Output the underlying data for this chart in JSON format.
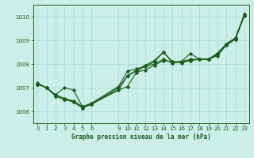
{
  "bg_color": "#cceee8",
  "grid_color": "#aad4ce",
  "line_color": "#1a5c1a",
  "title": "Graphe pression niveau de la mer (hPa)",
  "xlim": [
    -0.5,
    23.5
  ],
  "ylim": [
    1005.5,
    1010.5
  ],
  "yticks": [
    1006,
    1007,
    1008,
    1009,
    1010
  ],
  "xticks": [
    0,
    1,
    2,
    3,
    4,
    5,
    6,
    9,
    10,
    11,
    12,
    13,
    14,
    15,
    16,
    17,
    18,
    19,
    20,
    21,
    22,
    23
  ],
  "series": [
    [
      0,
      1007.15
    ],
    [
      1,
      1007.0
    ],
    [
      2,
      1006.7
    ],
    [
      3,
      1006.55
    ],
    [
      4,
      1006.45
    ],
    [
      5,
      1006.2
    ],
    [
      6,
      1006.3
    ],
    [
      9,
      1006.9
    ],
    [
      10,
      1007.05
    ],
    [
      11,
      1007.65
    ],
    [
      12,
      1007.75
    ],
    [
      13,
      1007.95
    ],
    [
      14,
      1008.15
    ],
    [
      15,
      1008.1
    ],
    [
      16,
      1008.1
    ],
    [
      17,
      1008.45
    ],
    [
      18,
      1008.2
    ],
    [
      19,
      1008.2
    ],
    [
      20,
      1008.45
    ],
    [
      21,
      1008.85
    ],
    [
      22,
      1009.1
    ],
    [
      23,
      1010.1
    ]
  ],
  "series2": [
    [
      0,
      1007.15
    ],
    [
      1,
      1007.0
    ],
    [
      2,
      1006.7
    ],
    [
      3,
      1007.0
    ],
    [
      4,
      1006.9
    ],
    [
      5,
      1006.2
    ],
    [
      6,
      1006.35
    ],
    [
      9,
      1007.05
    ],
    [
      10,
      1007.7
    ],
    [
      11,
      1007.8
    ],
    [
      12,
      1007.9
    ],
    [
      13,
      1008.0
    ],
    [
      14,
      1008.2
    ],
    [
      15,
      1008.05
    ],
    [
      16,
      1008.1
    ],
    [
      17,
      1008.2
    ],
    [
      18,
      1008.2
    ],
    [
      19,
      1008.2
    ],
    [
      20,
      1008.45
    ],
    [
      21,
      1008.85
    ],
    [
      22,
      1009.1
    ],
    [
      23,
      1010.1
    ]
  ],
  "series3": [
    [
      0,
      1007.15
    ],
    [
      1,
      1007.0
    ],
    [
      2,
      1006.65
    ],
    [
      3,
      1006.5
    ],
    [
      4,
      1006.4
    ],
    [
      5,
      1006.15
    ],
    [
      6,
      1006.3
    ],
    [
      9,
      1007.0
    ],
    [
      10,
      1007.5
    ],
    [
      11,
      1007.7
    ],
    [
      12,
      1007.9
    ],
    [
      13,
      1008.1
    ],
    [
      14,
      1008.5
    ],
    [
      15,
      1008.05
    ],
    [
      16,
      1008.1
    ],
    [
      17,
      1008.15
    ],
    [
      18,
      1008.2
    ],
    [
      19,
      1008.2
    ],
    [
      20,
      1008.4
    ],
    [
      21,
      1008.8
    ],
    [
      22,
      1009.05
    ],
    [
      23,
      1010.05
    ]
  ],
  "series4": [
    [
      0,
      1007.2
    ],
    [
      1,
      1007.0
    ],
    [
      2,
      1006.65
    ],
    [
      3,
      1006.5
    ],
    [
      4,
      1006.4
    ],
    [
      5,
      1006.15
    ],
    [
      6,
      1006.32
    ],
    [
      9,
      1006.92
    ],
    [
      10,
      1007.5
    ],
    [
      11,
      1007.75
    ],
    [
      12,
      1007.95
    ],
    [
      13,
      1008.15
    ],
    [
      14,
      1008.5
    ],
    [
      15,
      1008.1
    ],
    [
      16,
      1008.05
    ],
    [
      17,
      1008.15
    ],
    [
      18,
      1008.2
    ],
    [
      19,
      1008.2
    ],
    [
      20,
      1008.35
    ],
    [
      21,
      1008.8
    ],
    [
      22,
      1009.05
    ],
    [
      23,
      1010.05
    ]
  ]
}
